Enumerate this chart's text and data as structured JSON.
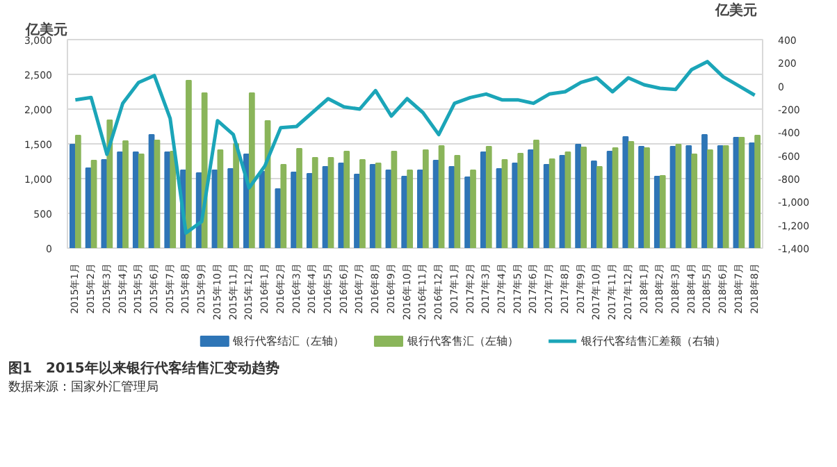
{
  "chart_data": {
    "type": "bar",
    "title": "图1　2015年以来银行代客结售汇变动趋势",
    "annotations": [
      "数据来源：国家外汇管理局"
    ],
    "ylabel": "亿美元",
    "y2label": "亿美元",
    "categories": [
      "2015年1月",
      "2015年2月",
      "2015年3月",
      "2015年4月",
      "2015年5月",
      "2015年6月",
      "2015年7月",
      "2015年8月",
      "2015年9月",
      "2015年10月",
      "2015年11月",
      "2015年12月",
      "2016年1月",
      "2016年2月",
      "2016年3月",
      "2016年4月",
      "2016年5月",
      "2016年6月",
      "2016年7月",
      "2016年8月",
      "2016年9月",
      "2016年10月",
      "2016年11月",
      "2016年12月",
      "2017年1月",
      "2017年2月",
      "2017年3月",
      "2017年4月",
      "2017年5月",
      "2017年6月",
      "2017年7月",
      "2017年8月",
      "2017年9月",
      "2017年10月",
      "2017年11月",
      "2017年12月",
      "2018年1月",
      "2018年2月",
      "2018年3月",
      "2018年4月",
      "2018年5月",
      "2018年6月",
      "2018年7月",
      "2018年8月"
    ],
    "series": [
      {
        "name": "银行代客结汇（左轴）",
        "color": "#2e75b6",
        "values": [
          1490,
          1150,
          1270,
          1380,
          1380,
          1630,
          1380,
          1120,
          1080,
          1120,
          1140,
          1350,
          1100,
          850,
          1090,
          1070,
          1170,
          1220,
          1060,
          1200,
          1120,
          1030,
          1120,
          1260,
          1170,
          1020,
          1380,
          1140,
          1220,
          1410,
          1200,
          1330,
          1490,
          1250,
          1390,
          1600,
          1460,
          1030,
          1460,
          1470,
          1630,
          1470,
          1590,
          1510
        ]
      },
      {
        "name": "银行代客售汇（左轴）",
        "color": "#8ab55a",
        "values": [
          1620,
          1260,
          1840,
          1540,
          1350,
          1550,
          1390,
          2410,
          2230,
          1410,
          1500,
          2230,
          1830,
          1200,
          1430,
          1300,
          1300,
          1390,
          1270,
          1220,
          1390,
          1120,
          1410,
          1470,
          1330,
          1120,
          1460,
          1270,
          1360,
          1550,
          1280,
          1380,
          1450,
          1170,
          1440,
          1530,
          1440,
          1040,
          1490,
          1350,
          1410,
          1470,
          1590,
          1620
        ]
      },
      {
        "name": "银行代客结售汇差额（右轴）",
        "type": "line",
        "axis": "y2",
        "color": "#1ba5b8",
        "values": [
          -120,
          -100,
          -590,
          -150,
          30,
          90,
          -280,
          -1270,
          -1170,
          -300,
          -420,
          -880,
          -690,
          -360,
          -350,
          -230,
          -110,
          -180,
          -200,
          -40,
          -260,
          -110,
          -230,
          -420,
          -150,
          -100,
          -70,
          -120,
          -120,
          -150,
          -70,
          -50,
          30,
          70,
          -50,
          70,
          10,
          -20,
          -30,
          140,
          210,
          80,
          0,
          -80
        ]
      }
    ],
    "ylim": [
      0,
      3000
    ],
    "yticks": [
      0,
      500,
      {
        "value": 1000,
        "label": "1,000"
      },
      {
        "value": 1500,
        "label": "1,500"
      },
      {
        "value": 2000,
        "label": "2,000"
      },
      {
        "value": 2500,
        "label": "2,500"
      },
      {
        "value": 3000,
        "label": "3,000"
      }
    ],
    "y2lim": [
      -1400,
      400
    ],
    "y2ticks": [
      {
        "value": -1400,
        "label": "-1,400"
      },
      {
        "value": -1200,
        "label": "-1,200"
      },
      {
        "value": -1000,
        "label": "-1,000"
      },
      -800,
      -600,
      -400,
      -200,
      0,
      200,
      400
    ],
    "grid": "y",
    "legend": "bottom",
    "stacked": false
  }
}
